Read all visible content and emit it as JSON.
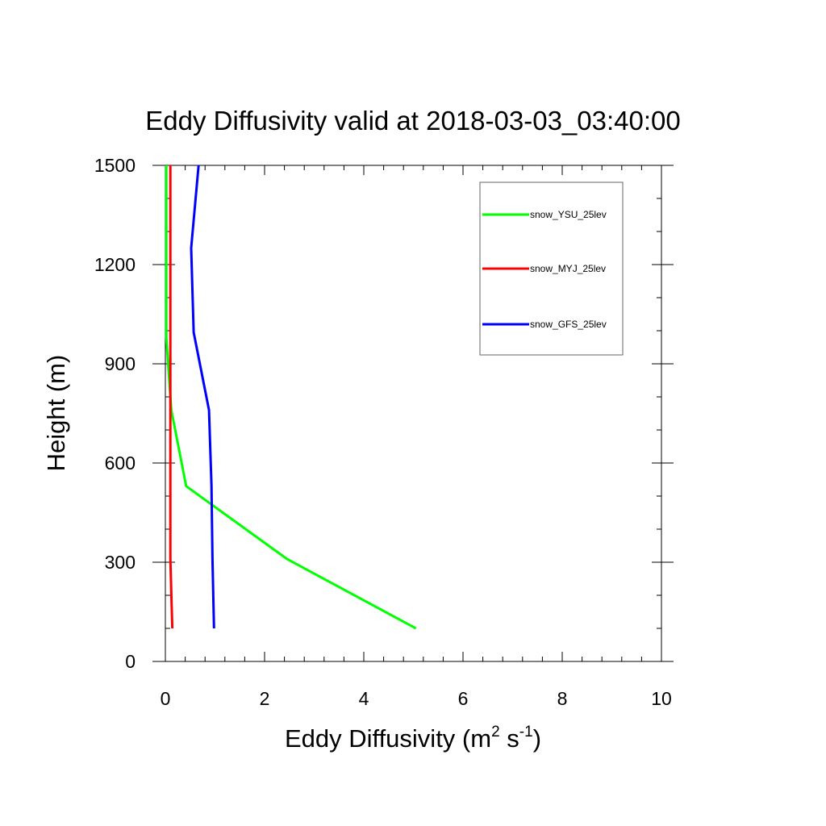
{
  "chart_data": {
    "type": "line",
    "title": "Eddy Diffusivity valid at 2018-03-03_03:40:00",
    "xlabel": "Eddy Diffusivity (m",
    "xlabel_sup1": "2",
    "xlabel_mid": " s",
    "xlabel_sup2": "-1",
    "xlabel_end": ")",
    "ylabel": "Height (m)",
    "xlim": [
      0,
      10
    ],
    "ylim": [
      0,
      1500
    ],
    "xticks": [
      "0",
      "2",
      "4",
      "6",
      "8",
      "10"
    ],
    "yticks": [
      "0",
      "300",
      "600",
      "900",
      "1200",
      "1500"
    ],
    "grid": false,
    "legend_position": "top-right",
    "series": [
      {
        "name": "snow_YSU_25lev",
        "color": "#00ff00",
        "points": [
          [
            5.05,
            100
          ],
          [
            2.45,
            310
          ],
          [
            0.42,
            530
          ],
          [
            0.12,
            760
          ],
          [
            0.02,
            980
          ],
          [
            0.02,
            1250
          ],
          [
            0.02,
            1500
          ]
        ]
      },
      {
        "name": "snow_MYJ_25lev",
        "color": "#ff0000",
        "points": [
          [
            0.14,
            100
          ],
          [
            0.1,
            310
          ],
          [
            0.1,
            530
          ],
          [
            0.1,
            760
          ],
          [
            0.1,
            980
          ],
          [
            0.1,
            1250
          ],
          [
            0.1,
            1500
          ]
        ]
      },
      {
        "name": "snow_GFS_25lev",
        "color": "#0000ff",
        "points": [
          [
            0.98,
            100
          ],
          [
            0.95,
            310
          ],
          [
            0.93,
            530
          ],
          [
            0.88,
            760
          ],
          [
            0.57,
            995
          ],
          [
            0.52,
            1250
          ],
          [
            0.67,
            1500
          ]
        ]
      }
    ]
  }
}
